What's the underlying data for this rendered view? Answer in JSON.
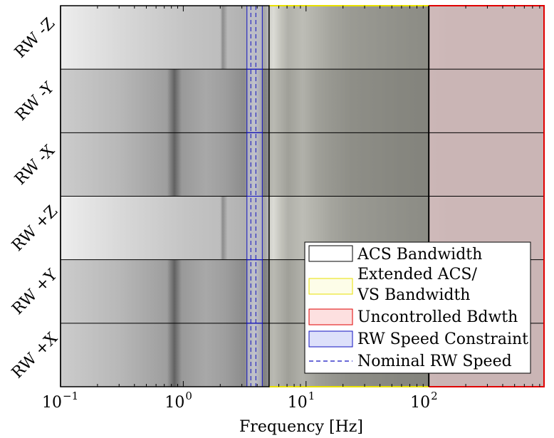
{
  "chart_data": {
    "type": "heatmap",
    "x_scale": "log",
    "xlim": [
      0.1,
      880
    ],
    "xlabel": "Frequency [Hz]",
    "x_ticks": [
      {
        "value": 0.1,
        "base": "10",
        "exp": "−1"
      },
      {
        "value": 1,
        "base": "10",
        "exp": "0"
      },
      {
        "value": 10,
        "base": "10",
        "exp": "1"
      },
      {
        "value": 100,
        "base": "10",
        "exp": "2"
      }
    ],
    "rows": [
      {
        "label": "RW -Z",
        "profile": "bright"
      },
      {
        "label": "RW -Y",
        "profile": "dark"
      },
      {
        "label": "RW -X",
        "profile": "dark"
      },
      {
        "label": "RW +Z",
        "profile": "bright"
      },
      {
        "label": "RW +Y",
        "profile": "dark"
      },
      {
        "label": "RW +X",
        "profile": "dark"
      }
    ],
    "bands": [
      {
        "name": "ACS Bandwidth",
        "from": 0.1,
        "to": 5.0,
        "edge": "#000000"
      },
      {
        "name": "Extended ACS/ VS Bandwidth",
        "from": 5.0,
        "to": 100,
        "edge": "#e8e000"
      },
      {
        "name": "Uncontrolled Bdwth",
        "from": 100,
        "to": 880,
        "edge": "#e00000"
      }
    ],
    "rw_speed_constraint": {
      "from": 3.3,
      "to": 4.4
    },
    "nominal_rw_speed_lines": [
      3.55,
      3.9
    ],
    "legend": {
      "position": "bottom-right",
      "entries": [
        {
          "label": "ACS Bandwidth",
          "swatch": "acs"
        },
        {
          "label_lines": [
            "Extended ACS/",
            "VS Bandwidth"
          ],
          "swatch": "ext"
        },
        {
          "label": "Uncontrolled Bdwth",
          "swatch": "unc"
        },
        {
          "label": "RW Speed Constraint",
          "swatch": "rw"
        },
        {
          "label": "Nominal RW Speed",
          "swatch": "nom"
        }
      ]
    }
  },
  "colors": {
    "acs_edge": "#000000",
    "ext_edge": "#e8e000",
    "ext_fill": "#fdfde8",
    "unc_edge": "#e00000",
    "unc_fill": "#fde0e0",
    "rw_edge": "#1010c0",
    "rw_fill": "#dde0fa"
  }
}
